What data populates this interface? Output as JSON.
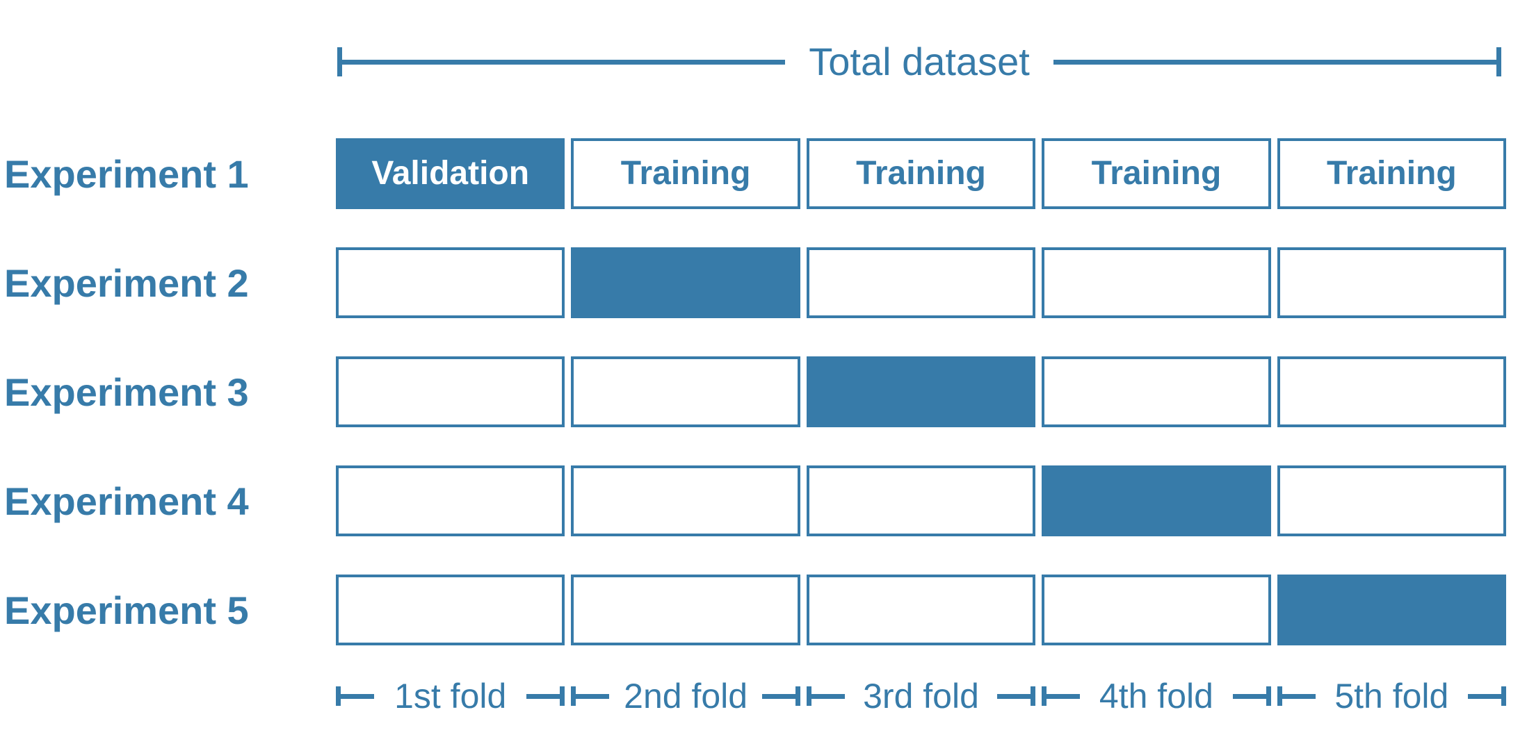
{
  "colors": {
    "accent": "#377ba9",
    "box_fill": "#377ba9",
    "box_border": "#377ba9",
    "label_text": "#377ba9",
    "validation_text": "#ffffff",
    "background": "#ffffff"
  },
  "header": {
    "total_label": "Total dataset"
  },
  "experiments": [
    {
      "label": "Experiment 1",
      "cells": [
        {
          "state": "validation",
          "text": "Validation"
        },
        {
          "state": "training",
          "text": "Training"
        },
        {
          "state": "training",
          "text": "Training"
        },
        {
          "state": "training",
          "text": "Training"
        },
        {
          "state": "training",
          "text": "Training"
        }
      ]
    },
    {
      "label": "Experiment 2",
      "cells": [
        {
          "state": "empty",
          "text": ""
        },
        {
          "state": "filled",
          "text": ""
        },
        {
          "state": "empty",
          "text": ""
        },
        {
          "state": "empty",
          "text": ""
        },
        {
          "state": "empty",
          "text": ""
        }
      ]
    },
    {
      "label": "Experiment 3",
      "cells": [
        {
          "state": "empty",
          "text": ""
        },
        {
          "state": "empty",
          "text": ""
        },
        {
          "state": "filled",
          "text": ""
        },
        {
          "state": "empty",
          "text": ""
        },
        {
          "state": "empty",
          "text": ""
        }
      ]
    },
    {
      "label": "Experiment 4",
      "cells": [
        {
          "state": "empty",
          "text": ""
        },
        {
          "state": "empty",
          "text": ""
        },
        {
          "state": "empty",
          "text": ""
        },
        {
          "state": "filled",
          "text": ""
        },
        {
          "state": "empty",
          "text": ""
        }
      ]
    },
    {
      "label": "Experiment 5",
      "cells": [
        {
          "state": "empty",
          "text": ""
        },
        {
          "state": "empty",
          "text": ""
        },
        {
          "state": "empty",
          "text": ""
        },
        {
          "state": "empty",
          "text": ""
        },
        {
          "state": "filled",
          "text": ""
        }
      ]
    }
  ],
  "folds": [
    "1st fold",
    "2nd fold",
    "3rd fold",
    "4th fold",
    "5th fold"
  ]
}
